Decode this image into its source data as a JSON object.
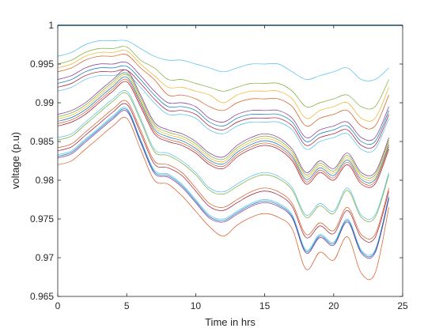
{
  "chart_data": {
    "type": "line",
    "title": "",
    "xlabel": "Time in hrs",
    "ylabel": "voltage (p.u)",
    "xlim": [
      0,
      25
    ],
    "ylim": [
      0.965,
      1.0
    ],
    "xticks": [
      0,
      5,
      10,
      15,
      20,
      25
    ],
    "xtick_labels": [
      "0",
      "5",
      "10",
      "15",
      "20",
      "25"
    ],
    "yticks": [
      0.965,
      0.97,
      0.975,
      0.98,
      0.985,
      0.99,
      0.995,
      1.0
    ],
    "ytick_labels": [
      "0.965",
      "0.97",
      "0.975",
      "0.98",
      "0.985",
      "0.99",
      "0.995",
      "1"
    ],
    "grid": false,
    "legend": "none",
    "x": [
      0,
      1,
      2,
      3,
      4,
      5,
      6,
      7,
      8,
      9,
      10,
      11,
      12,
      13,
      14,
      15,
      16,
      17,
      18,
      19,
      20,
      21,
      22,
      23,
      24
    ],
    "series": [
      {
        "color": "#4dbeee",
        "values": [
          0.996,
          0.9965,
          0.9975,
          0.998,
          0.998,
          0.998,
          0.997,
          0.996,
          0.9955,
          0.9955,
          0.995,
          0.9945,
          0.994,
          0.9945,
          0.995,
          0.995,
          0.995,
          0.994,
          0.993,
          0.9935,
          0.994,
          0.9945,
          0.993,
          0.993,
          0.9945
        ]
      },
      {
        "color": "#77ac30",
        "values": [
          0.995,
          0.9955,
          0.9965,
          0.997,
          0.997,
          0.9972,
          0.9955,
          0.9945,
          0.993,
          0.993,
          0.9925,
          0.992,
          0.9915,
          0.992,
          0.9925,
          0.9925,
          0.9925,
          0.9915,
          0.9895,
          0.99,
          0.9905,
          0.991,
          0.9895,
          0.9895,
          0.993
        ]
      },
      {
        "color": "#edb120",
        "values": [
          0.9945,
          0.995,
          0.996,
          0.9965,
          0.9965,
          0.9967,
          0.995,
          0.9935,
          0.992,
          0.992,
          0.9915,
          0.991,
          0.99,
          0.991,
          0.9915,
          0.9915,
          0.9915,
          0.9905,
          0.988,
          0.989,
          0.9895,
          0.99,
          0.988,
          0.988,
          0.992
        ]
      },
      {
        "color": "#d95319",
        "values": [
          0.994,
          0.9945,
          0.9955,
          0.996,
          0.996,
          0.9962,
          0.9945,
          0.993,
          0.991,
          0.991,
          0.9905,
          0.9895,
          0.989,
          0.99,
          0.9905,
          0.9905,
          0.9905,
          0.9895,
          0.987,
          0.988,
          0.9885,
          0.989,
          0.987,
          0.987,
          0.991
        ]
      },
      {
        "color": "#7e2f8e",
        "values": [
          0.993,
          0.9935,
          0.9945,
          0.995,
          0.995,
          0.9952,
          0.9935,
          0.9915,
          0.99,
          0.99,
          0.9895,
          0.988,
          0.9875,
          0.9885,
          0.989,
          0.989,
          0.989,
          0.988,
          0.9855,
          0.9865,
          0.987,
          0.9875,
          0.9855,
          0.9855,
          0.9895
        ]
      },
      {
        "color": "#0072bd",
        "values": [
          0.9925,
          0.993,
          0.994,
          0.9945,
          0.9945,
          0.9947,
          0.993,
          0.991,
          0.9895,
          0.9895,
          0.989,
          0.9875,
          0.987,
          0.988,
          0.9885,
          0.9885,
          0.9885,
          0.9875,
          0.985,
          0.986,
          0.9865,
          0.987,
          0.985,
          0.985,
          0.989
        ]
      },
      {
        "color": "#a2142f",
        "values": [
          0.992,
          0.9925,
          0.9935,
          0.994,
          0.994,
          0.9942,
          0.9925,
          0.9905,
          0.989,
          0.989,
          0.9885,
          0.987,
          0.9865,
          0.9875,
          0.988,
          0.988,
          0.988,
          0.987,
          0.9845,
          0.9855,
          0.986,
          0.9865,
          0.9845,
          0.9845,
          0.9885
        ]
      },
      {
        "color": "#4dbeee",
        "values": [
          0.9915,
          0.992,
          0.993,
          0.9935,
          0.9935,
          0.9937,
          0.992,
          0.99,
          0.9885,
          0.9885,
          0.988,
          0.9865,
          0.986,
          0.987,
          0.9875,
          0.9875,
          0.9875,
          0.9865,
          0.984,
          0.985,
          0.9855,
          0.986,
          0.984,
          0.984,
          0.988
        ]
      },
      {
        "color": "#7e2f8e",
        "values": [
          0.9885,
          0.989,
          0.99,
          0.9915,
          0.993,
          0.9942,
          0.991,
          0.9875,
          0.9865,
          0.986,
          0.985,
          0.9835,
          0.983,
          0.9845,
          0.9855,
          0.986,
          0.9855,
          0.984,
          0.981,
          0.9825,
          0.9815,
          0.9835,
          0.981,
          0.981,
          0.9855
        ]
      },
      {
        "color": "#77ac30",
        "values": [
          0.9882,
          0.9887,
          0.9897,
          0.9912,
          0.9927,
          0.9939,
          0.9907,
          0.9872,
          0.9862,
          0.9857,
          0.9847,
          0.9832,
          0.9827,
          0.9842,
          0.9852,
          0.9857,
          0.9852,
          0.9837,
          0.9807,
          0.9822,
          0.9812,
          0.9832,
          0.9807,
          0.9807,
          0.9852
        ]
      },
      {
        "color": "#edb120",
        "values": [
          0.9879,
          0.9884,
          0.9894,
          0.9909,
          0.9924,
          0.9936,
          0.9904,
          0.9869,
          0.9859,
          0.9854,
          0.9844,
          0.9829,
          0.9824,
          0.9839,
          0.9849,
          0.9854,
          0.9849,
          0.9834,
          0.9804,
          0.9819,
          0.9809,
          0.9829,
          0.9804,
          0.9804,
          0.9849
        ]
      },
      {
        "color": "#0072bd",
        "values": [
          0.9876,
          0.9881,
          0.9891,
          0.9906,
          0.9921,
          0.9933,
          0.9901,
          0.9866,
          0.9856,
          0.9851,
          0.9841,
          0.9826,
          0.9821,
          0.9836,
          0.9846,
          0.9851,
          0.9846,
          0.9831,
          0.9801,
          0.9816,
          0.9806,
          0.9826,
          0.9801,
          0.9801,
          0.9846
        ]
      },
      {
        "color": "#d95319",
        "values": [
          0.9873,
          0.9878,
          0.9888,
          0.9903,
          0.9918,
          0.993,
          0.9898,
          0.9863,
          0.9853,
          0.9848,
          0.9838,
          0.9823,
          0.9818,
          0.9833,
          0.9843,
          0.9848,
          0.9843,
          0.9828,
          0.9798,
          0.9813,
          0.9803,
          0.9823,
          0.9798,
          0.9798,
          0.9843
        ]
      },
      {
        "color": "#a2142f",
        "values": [
          0.987,
          0.9875,
          0.9885,
          0.99,
          0.9915,
          0.9927,
          0.9895,
          0.986,
          0.985,
          0.9845,
          0.9835,
          0.982,
          0.9815,
          0.983,
          0.984,
          0.9845,
          0.984,
          0.9825,
          0.9795,
          0.981,
          0.98,
          0.982,
          0.9795,
          0.9795,
          0.984
        ]
      },
      {
        "color": "#4dbeee",
        "values": [
          0.9855,
          0.986,
          0.9875,
          0.989,
          0.9905,
          0.9915,
          0.988,
          0.984,
          0.9835,
          0.9825,
          0.981,
          0.979,
          0.9785,
          0.9795,
          0.9805,
          0.981,
          0.9805,
          0.979,
          0.9755,
          0.977,
          0.976,
          0.979,
          0.9755,
          0.9755,
          0.981
        ]
      },
      {
        "color": "#77ac30",
        "values": [
          0.9852,
          0.9857,
          0.9872,
          0.9887,
          0.9902,
          0.9912,
          0.9877,
          0.9837,
          0.9832,
          0.9822,
          0.9807,
          0.9787,
          0.9782,
          0.9792,
          0.9802,
          0.9807,
          0.9802,
          0.9787,
          0.9752,
          0.9767,
          0.9757,
          0.9787,
          0.9752,
          0.9752,
          0.9807
        ]
      },
      {
        "color": "#d95319",
        "values": [
          0.9842,
          0.9847,
          0.9862,
          0.9877,
          0.9892,
          0.9902,
          0.9865,
          0.9825,
          0.982,
          0.981,
          0.979,
          0.977,
          0.9765,
          0.9775,
          0.9785,
          0.979,
          0.9785,
          0.977,
          0.973,
          0.9745,
          0.9735,
          0.9765,
          0.973,
          0.973,
          0.979
        ]
      },
      {
        "color": "#a2142f",
        "values": [
          0.9838,
          0.9843,
          0.9858,
          0.9873,
          0.9888,
          0.9898,
          0.9861,
          0.9821,
          0.9816,
          0.9806,
          0.9786,
          0.9766,
          0.9761,
          0.9771,
          0.9781,
          0.9786,
          0.9781,
          0.9766,
          0.9726,
          0.9741,
          0.9731,
          0.9761,
          0.9726,
          0.9726,
          0.9786
        ]
      },
      {
        "color": "#4dbeee",
        "values": [
          0.9833,
          0.9838,
          0.9853,
          0.9868,
          0.9883,
          0.9893,
          0.9853,
          0.9813,
          0.9808,
          0.9795,
          0.9775,
          0.9755,
          0.975,
          0.976,
          0.977,
          0.9775,
          0.977,
          0.9755,
          0.971,
          0.973,
          0.972,
          0.975,
          0.971,
          0.971,
          0.978
        ]
      },
      {
        "color": "#0072bd",
        "values": [
          0.9831,
          0.9836,
          0.9851,
          0.9866,
          0.9881,
          0.9891,
          0.9851,
          0.9811,
          0.9806,
          0.9793,
          0.9773,
          0.9753,
          0.9748,
          0.9758,
          0.9768,
          0.9773,
          0.9768,
          0.9753,
          0.9708,
          0.9728,
          0.9718,
          0.9748,
          0.9708,
          0.9708,
          0.9778
        ]
      },
      {
        "color": "#7e2f8e",
        "values": [
          0.9829,
          0.9834,
          0.9849,
          0.9864,
          0.9879,
          0.9889,
          0.9849,
          0.9809,
          0.9804,
          0.9791,
          0.9771,
          0.9751,
          0.9746,
          0.9756,
          0.9766,
          0.9771,
          0.9766,
          0.9751,
          0.9706,
          0.9726,
          0.9716,
          0.9746,
          0.9706,
          0.9706,
          0.9776
        ]
      },
      {
        "color": "#d95319",
        "values": [
          0.982,
          0.9825,
          0.984,
          0.9855,
          0.987,
          0.988,
          0.984,
          0.98,
          0.9795,
          0.978,
          0.976,
          0.974,
          0.9728,
          0.9742,
          0.9752,
          0.9757,
          0.9752,
          0.9737,
          0.9685,
          0.9707,
          0.9697,
          0.9727,
          0.968,
          0.968,
          0.9765
        ]
      }
    ]
  }
}
